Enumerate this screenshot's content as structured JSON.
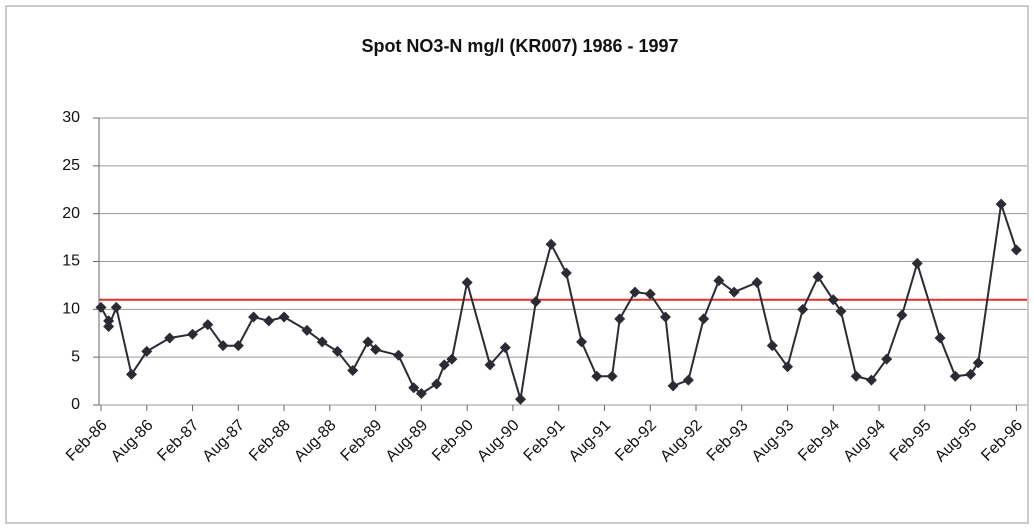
{
  "chart_data": {
    "type": "line",
    "title": "Spot NO3-N mg/l (KR007) 1986 - 1997",
    "x": [
      "Feb-86",
      "Mar-86",
      "Mar-86",
      "Apr-86",
      "Jun-86",
      "Aug-86",
      "Nov-86",
      "Feb-87",
      "Apr-87",
      "Jun-87",
      "Aug-87",
      "Oct-87",
      "Dec-87",
      "Feb-88",
      "May-88",
      "Jul-88",
      "Sep-88",
      "Nov-88",
      "Jan-89",
      "Feb-89",
      "May-89",
      "Jul-89",
      "Aug-89",
      "Oct-89",
      "Nov-89",
      "Dec-89",
      "Feb-90",
      "May-90",
      "Jul-90",
      "Sep-90",
      "Nov-90",
      "Jan-91",
      "Mar-91",
      "May-91",
      "Jul-91",
      "Sep-91",
      "Oct-91",
      "Dec-91",
      "Feb-92",
      "Apr-92",
      "May-92",
      "Jul-92",
      "Sep-92",
      "Nov-92",
      "Jan-93",
      "Apr-93",
      "Jun-93",
      "Aug-93",
      "Oct-93",
      "Dec-93",
      "Feb-94",
      "Mar-94",
      "May-94",
      "Jul-94",
      "Sep-94",
      "Nov-94",
      "Jan-95",
      "Apr-95",
      "Jun-95",
      "Aug-95",
      "Sep-95",
      "Dec-95",
      "Feb-96"
    ],
    "values": [
      10.2,
      8.8,
      8.2,
      10.2,
      3.2,
      5.6,
      7.0,
      7.4,
      8.4,
      6.2,
      6.2,
      9.2,
      8.8,
      9.2,
      7.8,
      6.6,
      5.6,
      3.6,
      6.6,
      5.8,
      5.2,
      1.8,
      1.2,
      2.2,
      4.2,
      4.8,
      12.8,
      4.2,
      6.0,
      0.6,
      10.8,
      16.8,
      13.8,
      6.6,
      3.0,
      3.0,
      9.0,
      11.8,
      11.6,
      9.2,
      2.0,
      2.6,
      9.0,
      13.0,
      11.8,
      12.8,
      6.2,
      4.0,
      10.0,
      13.4,
      11.0,
      9.8,
      3.0,
      2.6,
      4.8,
      9.4,
      14.8,
      7.0,
      3.0,
      3.2,
      4.4,
      21.0,
      16.2
    ],
    "color": "#2b2b33",
    "xlim": [
      "Feb-86",
      "Mar-96"
    ],
    "xticks": [
      "Feb-86",
      "Aug-86",
      "Feb-87",
      "Aug-87",
      "Feb-88",
      "Aug-88",
      "Feb-89",
      "Aug-89",
      "Feb-90",
      "Aug-90",
      "Feb-91",
      "Aug-91",
      "Feb-92",
      "Aug-92",
      "Feb-93",
      "Aug-93",
      "Feb-94",
      "Aug-94",
      "Feb-95",
      "Aug-95",
      "Feb-96"
    ],
    "ylim": [
      0,
      30
    ],
    "yticks": [
      0,
      5,
      10,
      15,
      20,
      25,
      30
    ],
    "grid": true,
    "reference_line": {
      "value": 11,
      "color": "#e0302a"
    }
  }
}
